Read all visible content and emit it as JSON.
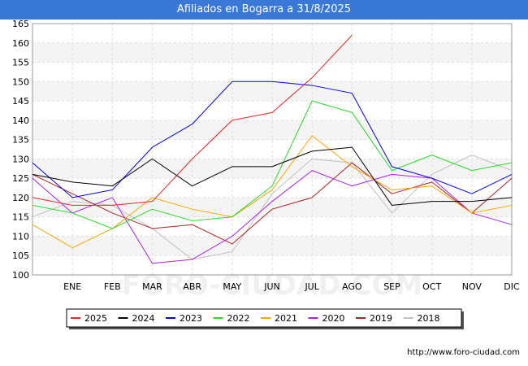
{
  "chart_data": {
    "type": "line",
    "title": "Afiliados en Bogarra a 31/8/2025",
    "categories": [
      "",
      "ENE",
      "FEB",
      "MAR",
      "ABR",
      "MAY",
      "JUN",
      "JUL",
      "AGO",
      "SEP",
      "OCT",
      "NOV",
      "DIC"
    ],
    "ylim": [
      100,
      165
    ],
    "yticks": [
      100,
      105,
      110,
      115,
      120,
      125,
      130,
      135,
      140,
      145,
      150,
      155,
      160,
      165
    ],
    "grid": true,
    "legend_position": "bottom",
    "watermark": "FORO-CIUDAD.COM",
    "series": [
      {
        "name": "2025",
        "color": "#ee2222",
        "values": [
          120,
          118,
          118,
          119,
          130,
          140,
          142,
          151,
          162,
          null,
          null,
          null,
          null
        ]
      },
      {
        "name": "2024",
        "color": "#000000",
        "values": [
          126,
          124,
          123,
          130,
          123,
          128,
          128,
          132,
          133,
          118,
          119,
          119,
          120
        ]
      },
      {
        "name": "2023",
        "color": "#0000ee",
        "values": [
          129,
          120,
          122,
          133,
          139,
          150,
          150,
          149,
          147,
          128,
          125,
          121,
          126
        ]
      },
      {
        "name": "2022",
        "color": "#22dd22",
        "values": [
          118,
          116,
          112,
          117,
          114,
          115,
          123,
          145,
          142,
          127,
          131,
          127,
          129
        ]
      },
      {
        "name": "2021",
        "color": "#ffa500",
        "values": [
          113,
          107,
          112,
          120,
          117,
          115,
          122,
          136,
          128,
          122,
          123,
          116,
          118
        ]
      },
      {
        "name": "2020",
        "color": "#aa22ee",
        "values": [
          125,
          116,
          120,
          103,
          104,
          110,
          119,
          127,
          123,
          126,
          125,
          116,
          113
        ]
      },
      {
        "name": "2019",
        "color": "#aa2222",
        "values": [
          126,
          121,
          116,
          112,
          113,
          108,
          117,
          120,
          129,
          121,
          124,
          116,
          125
        ]
      },
      {
        "name": "2018",
        "color": "#c0c0c0",
        "values": [
          115,
          119,
          118,
          112,
          104,
          106,
          121,
          130,
          129,
          116,
          126,
          131,
          127
        ]
      }
    ]
  },
  "source": "http://www.foro-ciudad.com"
}
